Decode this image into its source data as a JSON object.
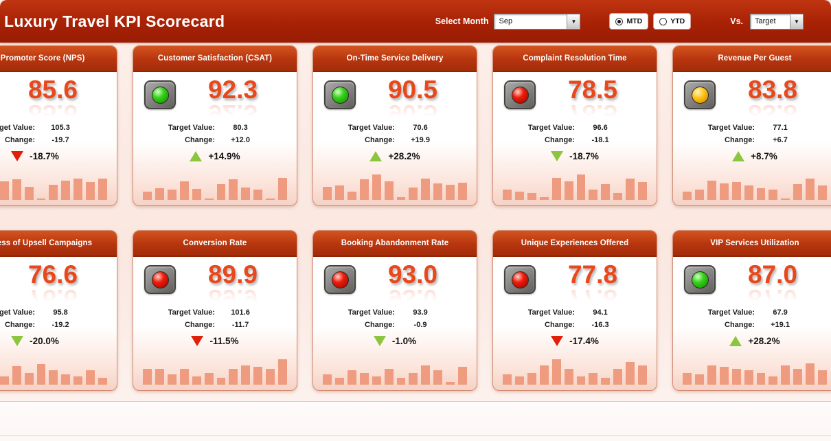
{
  "app": {
    "title": "Luxury Travel KPI Scorecard"
  },
  "header": {
    "select_month_label": "Select Month",
    "month_value": "Sep",
    "period_options": [
      "MTD",
      "YTD"
    ],
    "period_selected": "MTD",
    "vs_label": "Vs.",
    "vs_value": "Target"
  },
  "labels": {
    "target_value": "Target Value:",
    "change": "Change:"
  },
  "colors": {
    "topbar": "#a82105",
    "topbar_light": "#c03511",
    "card_header": "#b7350e",
    "card_header_light": "#d4541f",
    "value": "#e8481c",
    "bar": "#ee9b80",
    "green": "#8cc63f",
    "red": "#e0200a",
    "status_green": "#35d41a",
    "status_red": "#f01b0a",
    "status_yellow": "#ffc414"
  },
  "cards": [
    {
      "title": "Net Promoter Score (NPS)",
      "status": "red",
      "value": "85.6",
      "target": "105.3",
      "change": "-19.7",
      "trend": "down",
      "trend_color": "red",
      "pct": "-18.7%",
      "sparkline": [
        42,
        18,
        3,
        50,
        55,
        35,
        4,
        40,
        52,
        58,
        48,
        58
      ]
    },
    {
      "title": "Customer Satisfaction (CSAT)",
      "status": "green",
      "value": "92.3",
      "target": "80.3",
      "change": "+12.0",
      "trend": "up",
      "trend_color": "green",
      "pct": "+14.9%",
      "sparkline": [
        22,
        32,
        28,
        50,
        30,
        4,
        42,
        55,
        33,
        28,
        3,
        60
      ]
    },
    {
      "title": "On-Time Service Delivery",
      "status": "green",
      "value": "90.5",
      "target": "70.6",
      "change": "+19.9",
      "trend": "up",
      "trend_color": "green",
      "pct": "+28.2%",
      "sparkline": [
        35,
        38,
        22,
        55,
        68,
        50,
        8,
        33,
        58,
        45,
        40,
        47
      ]
    },
    {
      "title": "Complaint Resolution Time",
      "status": "red",
      "value": "78.5",
      "target": "96.6",
      "change": "-18.1",
      "trend": "down",
      "trend_color": "green",
      "pct": "-18.7%",
      "sparkline": [
        28,
        22,
        18,
        8,
        60,
        50,
        68,
        28,
        42,
        18,
        58,
        48
      ]
    },
    {
      "title": "Revenue Per Guest",
      "status": "yellow",
      "value": "83.8",
      "target": "77.1",
      "change": "+6.7",
      "trend": "up",
      "trend_color": "green",
      "pct": "+8.7%",
      "sparkline": [
        22,
        28,
        52,
        45,
        48,
        38,
        32,
        28,
        4,
        42,
        58,
        38
      ]
    },
    {
      "title": "Success of Upsell Campaigns",
      "status": "red",
      "value": "76.6",
      "target": "95.8",
      "change": "-19.2",
      "trend": "down",
      "trend_color": "green",
      "pct": "-20.0%",
      "sparkline": [
        40,
        65,
        38,
        22,
        50,
        32,
        55,
        38,
        28,
        22,
        38,
        18
      ]
    },
    {
      "title": "Conversion Rate",
      "status": "red",
      "value": "89.9",
      "target": "101.6",
      "change": "-11.7",
      "trend": "down",
      "trend_color": "red",
      "pct": "-11.5%",
      "sparkline": [
        42,
        42,
        28,
        42,
        22,
        32,
        18,
        42,
        52,
        48,
        42,
        68
      ]
    },
    {
      "title": "Booking Abandonment Rate",
      "status": "red",
      "value": "93.0",
      "target": "93.9",
      "change": "-0.9",
      "trend": "down",
      "trend_color": "green",
      "pct": "-1.0%",
      "sparkline": [
        28,
        18,
        38,
        32,
        22,
        42,
        18,
        32,
        52,
        38,
        8,
        48
      ]
    },
    {
      "title": "Unique Experiences Offered",
      "status": "red",
      "value": "77.8",
      "target": "94.1",
      "change": "-16.3",
      "trend": "down",
      "trend_color": "red",
      "pct": "-17.4%",
      "sparkline": [
        28,
        22,
        32,
        52,
        68,
        42,
        22,
        32,
        18,
        42,
        62,
        52
      ]
    },
    {
      "title": "VIP Services Utilization",
      "status": "green",
      "value": "87.0",
      "target": "67.9",
      "change": "+19.1",
      "trend": "up",
      "trend_color": "green",
      "pct": "+28.2%",
      "sparkline": [
        32,
        28,
        52,
        48,
        42,
        38,
        32,
        22,
        52,
        42,
        58,
        38
      ]
    }
  ]
}
